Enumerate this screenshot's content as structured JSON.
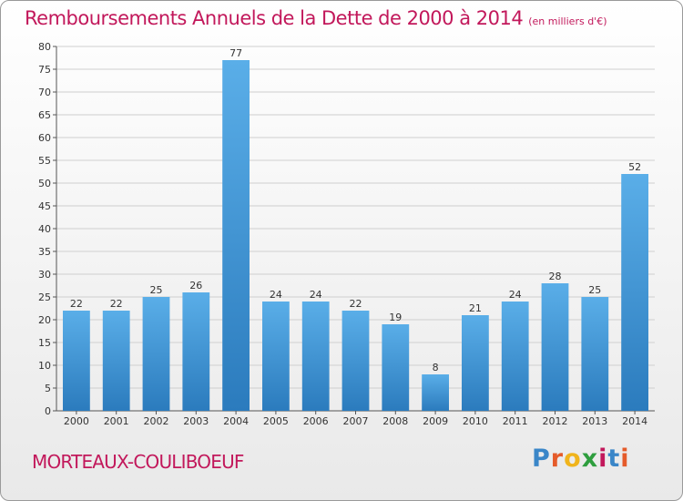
{
  "header": {
    "title": "Remboursements Annuels de la Dette de 2000 à 2014",
    "subtitle": "(en milliers d'€)"
  },
  "footer": {
    "commune": "MORTEAUX-COULIBOEUF",
    "brand": "Proxiti",
    "brand_letters": [
      "P",
      "r",
      "o",
      "x",
      "i",
      "t",
      "i"
    ],
    "brand_colors": [
      "#3a86c8",
      "#e55b2a",
      "#f0b41c",
      "#2e9e3e",
      "#c2185b",
      "#3a86c8",
      "#e55b2a"
    ]
  },
  "colors": {
    "title": "#c2185b",
    "bar_top": "#5aaee8",
    "bar_bottom": "#2b7bbd",
    "grid": "#cfcfcf",
    "axis": "#555555"
  },
  "chart_data": {
    "type": "bar",
    "title": "Remboursements Annuels de la Dette de 2000 à 2014",
    "subtitle": "(en milliers d'€)",
    "xlabel": "",
    "ylabel": "",
    "categories": [
      "2000",
      "2001",
      "2002",
      "2003",
      "2004",
      "2005",
      "2006",
      "2007",
      "2008",
      "2009",
      "2010",
      "2011",
      "2012",
      "2013",
      "2014"
    ],
    "values": [
      22,
      22,
      25,
      26,
      77,
      24,
      24,
      22,
      19,
      8,
      21,
      24,
      28,
      25,
      52
    ],
    "ylim": [
      0,
      80
    ],
    "yticks": [
      "0",
      "5",
      "10",
      "15",
      "20",
      "25",
      "30",
      "35",
      "40",
      "45",
      "50",
      "55",
      "60",
      "65",
      "70",
      "75",
      "80"
    ],
    "grid": true,
    "data_labels": true
  }
}
